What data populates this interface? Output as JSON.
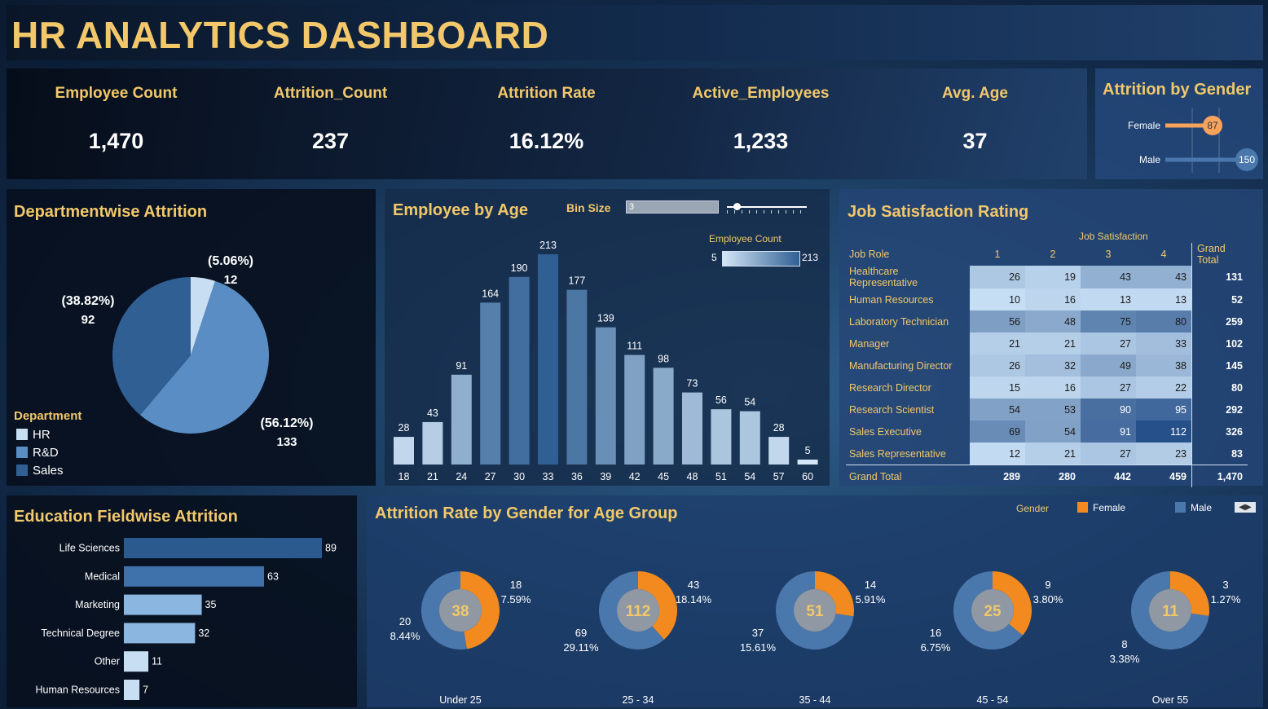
{
  "header": {
    "title": "HR ANALYTICS DASHBOARD"
  },
  "kpis": [
    {
      "label": "Employee Count",
      "value": "1,470"
    },
    {
      "label": "Attrition_Count",
      "value": "237"
    },
    {
      "label": "Attrition Rate",
      "value": "16.12%"
    },
    {
      "label": "Active_Employees",
      "value": "1,233"
    },
    {
      "label": "Avg. Age",
      "value": "37"
    }
  ],
  "colors": {
    "title_gold": "#f2c86a",
    "hr": "#c8dff3",
    "rd": "#5a8dc4",
    "sales": "#2f5f93",
    "female": "#f7a35c",
    "female_orange": "#f28a1f",
    "male": "#4a78ad"
  },
  "chart_data": [
    {
      "id": "gender",
      "type": "bar",
      "title": "Attrition by Gender",
      "categories": [
        "Female",
        "Male"
      ],
      "values": [
        87,
        150
      ],
      "labels": [
        "87",
        "150"
      ]
    },
    {
      "id": "dept",
      "type": "pie",
      "title": "Departmentwise Attrition",
      "legend_title": "Department",
      "categories": [
        "HR",
        "R&D",
        "Sales"
      ],
      "values": [
        12,
        133,
        92
      ],
      "percent_labels": [
        "(5.06%)",
        "(56.12%)",
        "(38.82%)"
      ],
      "value_labels": [
        "12",
        "133",
        "92"
      ]
    },
    {
      "id": "age",
      "type": "bar",
      "title": "Employee by Age",
      "bin_label": "Bin Size",
      "bin_value": "3",
      "color_legend_title": "Employee Count",
      "color_legend_min": "5",
      "color_legend_max": "213",
      "categories": [
        "18",
        "21",
        "24",
        "27",
        "30",
        "33",
        "36",
        "39",
        "42",
        "45",
        "48",
        "51",
        "54",
        "57",
        "60"
      ],
      "values": [
        28,
        43,
        91,
        164,
        190,
        213,
        177,
        139,
        111,
        98,
        73,
        56,
        54,
        28,
        5
      ],
      "labels": [
        "28",
        "43",
        "91",
        "164",
        "190",
        "213",
        "177",
        "139",
        "111",
        "98",
        "73",
        "56",
        "54",
        "28",
        "5"
      ]
    },
    {
      "id": "job",
      "type": "table",
      "title": "Job Satisfaction Rating",
      "column_group": "Job Satisfaction",
      "columns": [
        "Job Role",
        "1",
        "2",
        "3",
        "4",
        "Grand Total"
      ],
      "rows": [
        [
          "Healthcare Representative",
          "26",
          "19",
          "43",
          "43",
          "131"
        ],
        [
          "Human Resources",
          "10",
          "16",
          "13",
          "13",
          "52"
        ],
        [
          "Laboratory Technician",
          "56",
          "48",
          "75",
          "80",
          "259"
        ],
        [
          "Manager",
          "21",
          "21",
          "27",
          "33",
          "102"
        ],
        [
          "Manufacturing Director",
          "26",
          "32",
          "49",
          "38",
          "145"
        ],
        [
          "Research Director",
          "15",
          "16",
          "27",
          "22",
          "80"
        ],
        [
          "Research Scientist",
          "54",
          "53",
          "90",
          "95",
          "292"
        ],
        [
          "Sales Executive",
          "69",
          "54",
          "91",
          "112",
          "326"
        ],
        [
          "Sales Representative",
          "12",
          "21",
          "27",
          "23",
          "83"
        ],
        [
          "Grand Total",
          "289",
          "280",
          "442",
          "459",
          "1,470"
        ]
      ]
    },
    {
      "id": "edu",
      "type": "bar",
      "title": "Education Fieldwise Attrition",
      "categories": [
        "Life Sciences",
        "Medical",
        "Marketing",
        "Technical Degree",
        "Other",
        "Human Resources"
      ],
      "values": [
        89,
        63,
        35,
        32,
        11,
        7
      ],
      "labels": [
        "89",
        "63",
        "35",
        "32",
        "11",
        "7"
      ]
    },
    {
      "id": "agegrp",
      "type": "pie",
      "title": "Attrition Rate by Gender for Age Group",
      "legend_title": "Gender",
      "legend": [
        "Female",
        "Male"
      ],
      "groups": [
        {
          "name": "Under 25",
          "total": "38",
          "female": 18,
          "female_count": "18",
          "female_pct": "7.59%",
          "male": 20,
          "male_count": "20",
          "male_pct": "8.44%"
        },
        {
          "name": "25 - 34",
          "total": "112",
          "female": 43,
          "female_count": "43",
          "female_pct": "18.14%",
          "male": 69,
          "male_count": "69",
          "male_pct": "29.11%"
        },
        {
          "name": "35 - 44",
          "total": "51",
          "female": 14,
          "female_count": "14",
          "female_pct": "5.91%",
          "male": 37,
          "male_count": "37",
          "male_pct": "15.61%"
        },
        {
          "name": "45 - 54",
          "total": "25",
          "female": 9,
          "female_count": "9",
          "female_pct": "3.80%",
          "male": 16,
          "male_count": "16",
          "male_pct": "6.75%"
        },
        {
          "name": "Over 55",
          "total": "11",
          "female": 3,
          "female_count": "3",
          "female_pct": "1.27%",
          "male": 8,
          "male_count": "8",
          "male_pct": "3.38%"
        }
      ]
    }
  ]
}
